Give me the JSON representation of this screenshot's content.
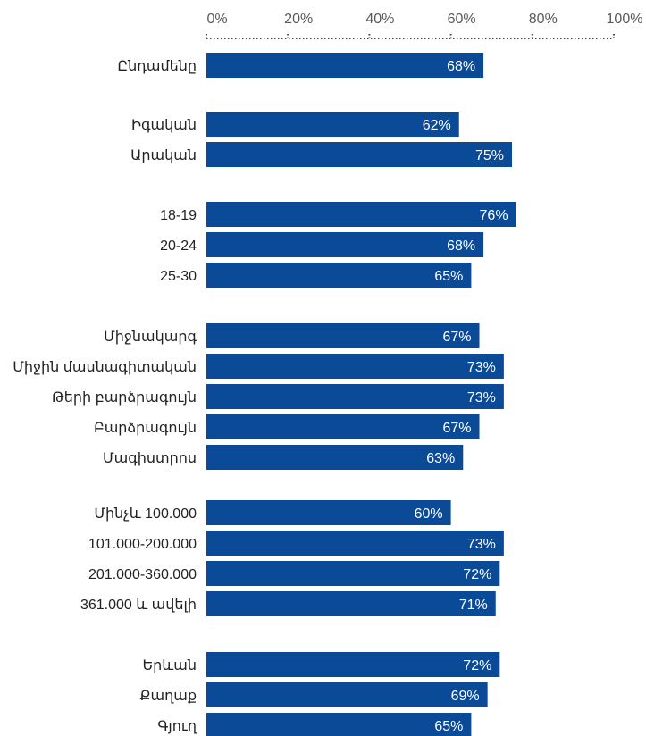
{
  "chart_data": {
    "type": "bar",
    "orientation": "horizontal",
    "title": "",
    "xlabel": "",
    "ylabel": "",
    "xlim": [
      0,
      100
    ],
    "x_ticks": [
      "0%",
      "20%",
      "40%",
      "60%",
      "80%",
      "100%"
    ],
    "grid": false,
    "legend": "none",
    "bar_color": "#0b4a96",
    "groups": [
      {
        "categories": [
          "Ընդամենը"
        ],
        "values": [
          68
        ],
        "labels": [
          "68%"
        ]
      },
      {
        "categories": [
          "Իգական",
          "Արական"
        ],
        "values": [
          62,
          75
        ],
        "labels": [
          "62%",
          "75%"
        ]
      },
      {
        "categories": [
          "18-19",
          "20-24",
          "25-30"
        ],
        "values": [
          76,
          68,
          65
        ],
        "labels": [
          "76%",
          "68%",
          "65%"
        ]
      },
      {
        "categories": [
          "Միջնակարգ",
          "Միջին մասնագիտական",
          "Թերի բարձրագույն",
          "Բարձրագույն",
          "Մագիստրոս"
        ],
        "values": [
          67,
          73,
          73,
          67,
          63
        ],
        "labels": [
          "67%",
          "73%",
          "73%",
          "67%",
          "63%"
        ]
      },
      {
        "categories": [
          "Մինչև 100.000",
          "101.000-200.000",
          "201.000-360.000",
          "361.000 և ավելի"
        ],
        "values": [
          60,
          73,
          72,
          71
        ],
        "labels": [
          "60%",
          "73%",
          "72%",
          "71%"
        ]
      },
      {
        "categories": [
          "Երևան",
          "Քաղաք",
          "Գյուղ"
        ],
        "values": [
          72,
          69,
          65
        ],
        "labels": [
          "72%",
          "69%",
          "65%"
        ]
      }
    ]
  }
}
